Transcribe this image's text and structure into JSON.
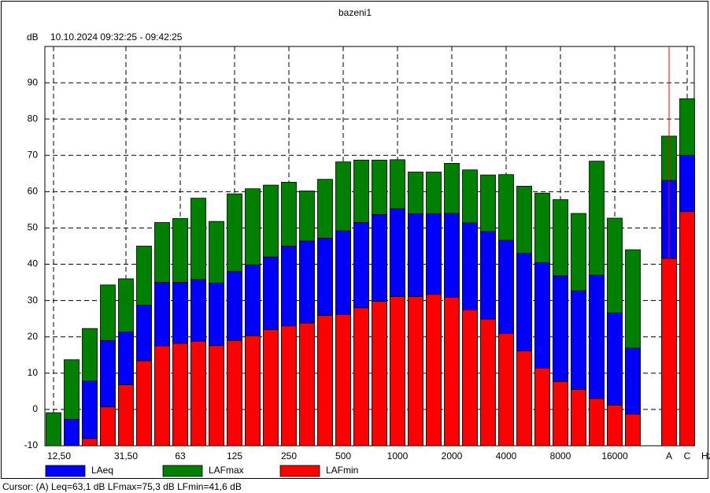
{
  "chart_data": {
    "type": "bar",
    "title": "bazeni1",
    "subtitle": "10.10.2024 09:32:25 - 09:42:25",
    "y_label": "dB",
    "x_label": "Hz",
    "categories": [
      "12,50",
      null,
      null,
      null,
      "31,50",
      null,
      null,
      "63",
      null,
      null,
      "125",
      null,
      null,
      "250",
      null,
      null,
      "500",
      null,
      null,
      "1000",
      null,
      null,
      "2000",
      null,
      null,
      "4000",
      null,
      null,
      "8000",
      null,
      null,
      "16000",
      null,
      null,
      "A",
      "C"
    ],
    "series": [
      {
        "name": "LAeq",
        "color": "#0000ff",
        "values": [
          null,
          -2.7,
          7.8,
          19.0,
          21.3,
          28.7,
          35.0,
          35.0,
          35.8,
          34.8,
          38.0,
          39.8,
          42.0,
          45.0,
          46.4,
          47.2,
          49.2,
          51.5,
          53.7,
          55.3,
          53.9,
          53.9,
          54.0,
          51.4,
          49.0,
          46.6,
          43.0,
          40.4,
          36.8,
          32.7,
          37.0,
          26.6,
          16.9,
          null,
          63.1,
          70.0
        ]
      },
      {
        "name": "LAFmax",
        "color": "#008000",
        "values": [
          -0.9,
          13.7,
          22.3,
          34.3,
          36.0,
          45.0,
          51.5,
          52.6,
          58.2,
          51.8,
          59.4,
          60.8,
          61.8,
          62.6,
          60.2,
          63.4,
          68.2,
          68.7,
          68.7,
          68.8,
          65.4,
          65.4,
          67.8,
          66.0,
          64.6,
          64.7,
          61.5,
          59.6,
          57.8,
          54.0,
          68.4,
          52.7,
          44.0,
          null,
          75.3,
          85.6
        ]
      },
      {
        "name": "LAFmin",
        "color": "#ff0000",
        "values": [
          null,
          null,
          -8.0,
          0.7,
          6.8,
          13.4,
          17.5,
          18.2,
          18.8,
          17.6,
          19.0,
          20.3,
          22.0,
          23.0,
          23.8,
          25.9,
          26.1,
          28.0,
          29.8,
          31.1,
          31.1,
          31.7,
          30.9,
          27.4,
          24.9,
          20.9,
          16.1,
          11.4,
          7.7,
          5.5,
          3.0,
          1.2,
          -1.3,
          null,
          41.6,
          54.5
        ]
      }
    ],
    "ylim": [
      -10,
      100
    ],
    "yticks": [
      -10,
      0,
      10,
      20,
      30,
      40,
      50,
      60,
      70,
      80,
      90
    ],
    "grid": true,
    "cursor": "A",
    "cursor_text": "Cursor: (A) Leq=63,1 dB  LFmax=75,3 dB  LFmin=41,6 dB"
  }
}
